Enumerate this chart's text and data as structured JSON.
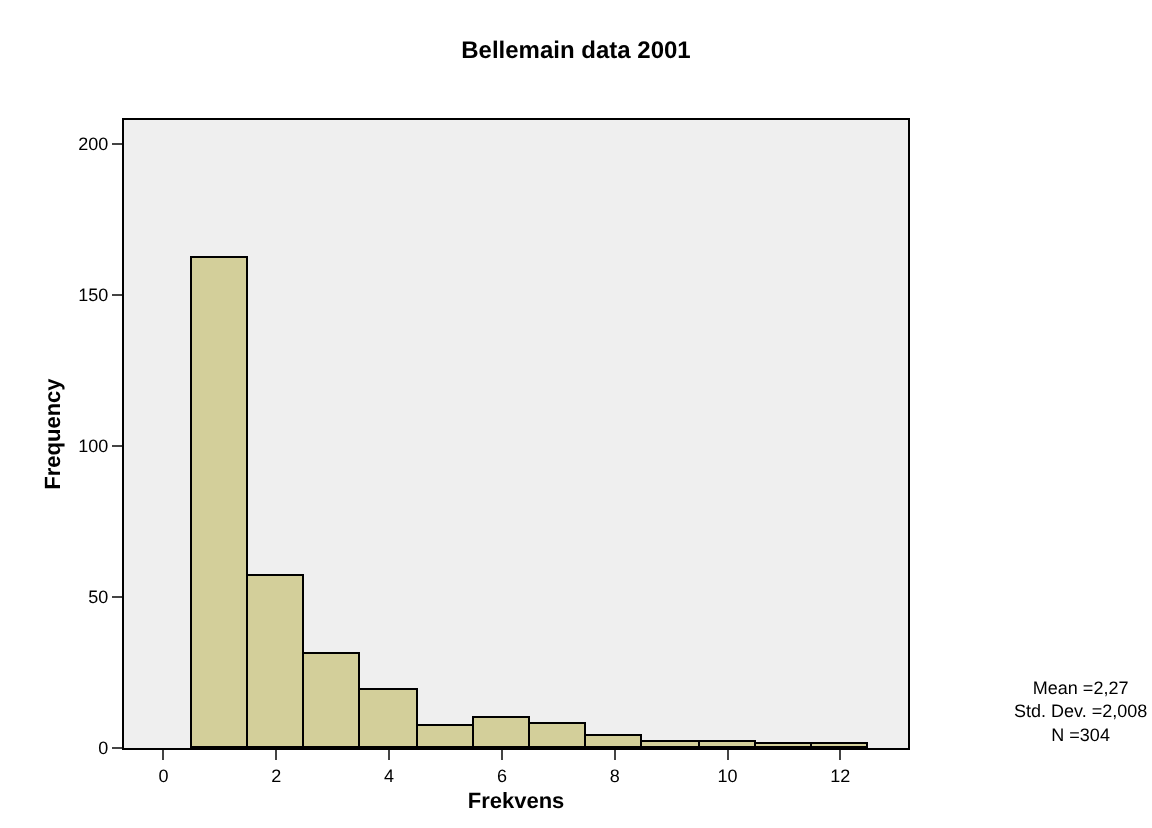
{
  "chart_data": {
    "type": "histogram",
    "title": "Bellemain data 2001",
    "xlabel": "Frekvens",
    "ylabel": "Frequency",
    "bins": [
      0.5,
      1.5,
      2.5,
      3.5,
      4.5,
      5.5,
      6.5,
      7.5,
      8.5,
      9.5,
      10.5,
      11.5,
      12.5
    ],
    "values": [
      162,
      57,
      31,
      19,
      7,
      10,
      8,
      4,
      2,
      2,
      1,
      1
    ],
    "color": "#d3cf9a",
    "xlim": [
      -0.7,
      13.2
    ],
    "xticks": [
      0,
      2,
      4,
      6,
      8,
      10,
      12
    ],
    "ylim": [
      0,
      208
    ],
    "yticks": [
      0,
      50,
      100,
      150,
      200
    ],
    "grid": false,
    "annotations": [
      "Mean =2,27\nStd. Dev. =2,008\nN =304"
    ]
  }
}
